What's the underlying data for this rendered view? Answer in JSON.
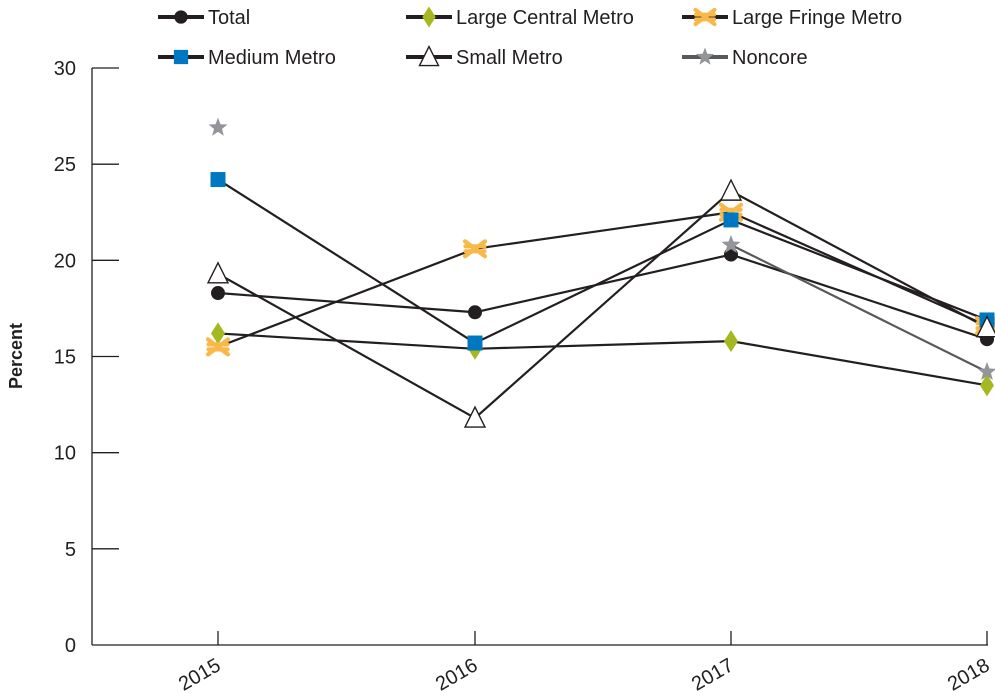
{
  "chart_data": {
    "type": "line",
    "title": "",
    "xlabel": "",
    "ylabel": "Percent",
    "categories": [
      "2015",
      "2016",
      "2017",
      "2018"
    ],
    "ylim": [
      0,
      30
    ],
    "yticks": [
      0,
      5,
      10,
      15,
      20,
      25,
      30
    ],
    "grid": false,
    "legend_position": "top",
    "series": [
      {
        "name": "Total",
        "values": [
          18.3,
          17.3,
          20.3,
          15.9
        ],
        "marker": "circle",
        "marker_color": "#231f20",
        "line_color": "#231f20"
      },
      {
        "name": "Large Central Metro",
        "values": [
          16.2,
          15.4,
          15.8,
          13.5
        ],
        "marker": "diamond",
        "marker_color": "#a6b820",
        "line_color": "#231f20"
      },
      {
        "name": "Large Fringe Metro",
        "values": [
          15.5,
          20.6,
          22.5,
          16.6
        ],
        "marker": "asterisk",
        "marker_color": "#f9b84a",
        "line_color": "#231f20"
      },
      {
        "name": "Medium Metro",
        "values": [
          24.2,
          15.7,
          22.1,
          16.9
        ],
        "marker": "square",
        "marker_color": "#0078c1",
        "line_color": "#231f20"
      },
      {
        "name": "Small Metro",
        "values": [
          19.3,
          11.8,
          23.6,
          16.5
        ],
        "marker": "triangle",
        "marker_color": "#ffffff",
        "line_color": "#231f20"
      },
      {
        "name": "Noncore",
        "values": [
          26.9,
          null,
          20.8,
          14.2
        ],
        "marker": "star",
        "marker_color": "#939598",
        "line_color": "#58595b"
      }
    ]
  }
}
